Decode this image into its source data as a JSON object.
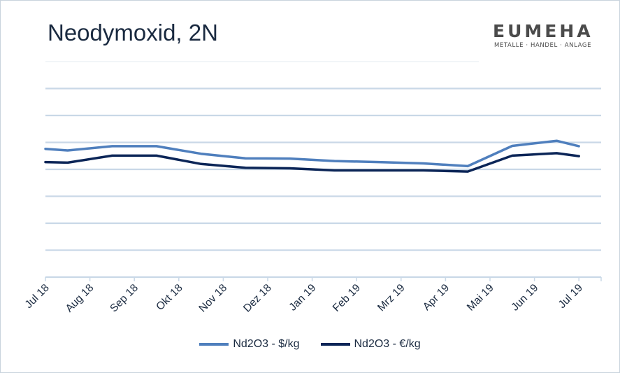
{
  "title": "Neodymoxid, 2N",
  "logo": {
    "name": "EUMEHA",
    "tagline": "METALLE · HANDEL · ANLAGE"
  },
  "colors": {
    "usd": "#4f7fbd",
    "eur": "#0b2557",
    "grid": "#c9d8e7"
  },
  "chart_data": {
    "type": "line",
    "categories": [
      "Jul 18",
      "Aug 18",
      "Sep 18",
      "Okt 18",
      "Nov 18",
      "Dez 18",
      "Jan 19",
      "Feb 19",
      "Mrz 19",
      "Apr 19",
      "Mai 19",
      "Jun 19",
      "Jul 19"
    ],
    "x": [
      0,
      0.5,
      1.5,
      2.5,
      3.5,
      4.5,
      5.5,
      6.5,
      7.5,
      8.5,
      9.5,
      10.5,
      11.5,
      12
    ],
    "series": [
      {
        "name": "Nd2O3 - $/kg",
        "color": "#4f7fbd",
        "values": [
          4.76,
          4.7,
          4.86,
          4.86,
          4.58,
          4.41,
          4.4,
          4.31,
          4.27,
          4.22,
          4.12,
          4.87,
          5.06,
          4.86
        ]
      },
      {
        "name": "Nd2O3 - €/kg",
        "color": "#0b2557",
        "values": [
          4.27,
          4.25,
          4.51,
          4.51,
          4.2,
          4.06,
          4.04,
          3.96,
          3.96,
          3.96,
          3.92,
          4.51,
          4.6,
          4.49
        ]
      }
    ],
    "ylim": [
      0,
      8
    ],
    "grid": true,
    "legend": "bottom"
  }
}
